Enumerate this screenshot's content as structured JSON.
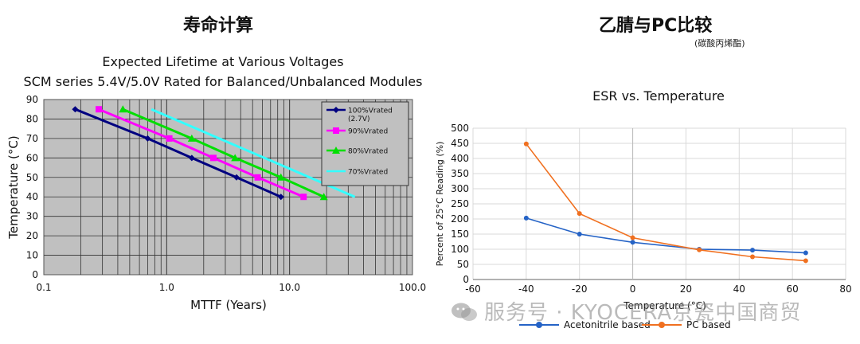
{
  "left": {
    "section_title": "寿命计算"
  },
  "right": {
    "section_title": "乙腈与PC比较",
    "subtitle": "(碳酸丙烯酯)"
  },
  "watermark": {
    "text": "服务号 · KYOCERA京瓷中国商贸"
  },
  "chart_data": [
    {
      "type": "line",
      "title": "Expected Lifetime at Various Voltages",
      "subtitle": "SCM series 5.4V/5.0V Rated for Balanced/Unbalanced Modules",
      "xlabel": "MTTF (Years)",
      "ylabel": "Temperature (°C)",
      "xscale": "log",
      "xlim": [
        0.1,
        100
      ],
      "ylim": [
        0,
        90
      ],
      "xticks": [
        "0.1",
        "1.0",
        "10.0",
        "100.0"
      ],
      "yticks": [
        "0",
        "10",
        "20",
        "30",
        "40",
        "50",
        "60",
        "70",
        "80",
        "90"
      ],
      "grid": true,
      "background": "#c0c0c0",
      "legend_position": "top-right",
      "series": [
        {
          "name": "100%Vrated",
          "name2": "(2.7V)",
          "color": "#000080",
          "marker": "diamond",
          "points": [
            [
              0.18,
              85
            ],
            [
              0.7,
              70
            ],
            [
              1.6,
              60
            ],
            [
              3.7,
              50
            ],
            [
              8.5,
              40
            ]
          ]
        },
        {
          "name": "90%Vrated",
          "color": "#ff00ff",
          "marker": "square",
          "points": [
            [
              0.28,
              85
            ],
            [
              1.05,
              70
            ],
            [
              2.4,
              60
            ],
            [
              5.5,
              50
            ],
            [
              13,
              40
            ]
          ]
        },
        {
          "name": "80%Vrated",
          "color": "#00e000",
          "marker": "triangle",
          "points": [
            [
              0.44,
              85
            ],
            [
              1.6,
              70
            ],
            [
              3.6,
              60
            ],
            [
              8.5,
              50
            ],
            [
              19,
              40
            ]
          ]
        },
        {
          "name": "70%Vrated",
          "color": "#33ffff",
          "marker": "none",
          "points": [
            [
              0.75,
              85
            ],
            [
              34,
              40
            ]
          ]
        }
      ]
    },
    {
      "type": "line",
      "title": "ESR vs. Temperature",
      "xlabel": "Temperature (°C)",
      "ylabel": "Percent of 25°C Reading (%)",
      "xlim": [
        -60,
        80
      ],
      "ylim": [
        0,
        500
      ],
      "xticks": [
        "-60",
        "-40",
        "-20",
        "0",
        "20",
        "40",
        "60",
        "80"
      ],
      "yticks": [
        "0",
        "50",
        "100",
        "150",
        "200",
        "250",
        "300",
        "350",
        "400",
        "450",
        "500"
      ],
      "grid": true,
      "legend_position": "bottom",
      "series": [
        {
          "name": "Acetonitrile based",
          "color": "#2563c6",
          "x": [
            -40,
            -20,
            0,
            25,
            45,
            65
          ],
          "y": [
            203,
            150,
            123,
            100,
            97,
            88
          ]
        },
        {
          "name": "PC based",
          "color": "#f07020",
          "x": [
            -40,
            -20,
            0,
            25,
            45,
            65
          ],
          "y": [
            448,
            218,
            138,
            98,
            75,
            62
          ]
        }
      ]
    }
  ]
}
